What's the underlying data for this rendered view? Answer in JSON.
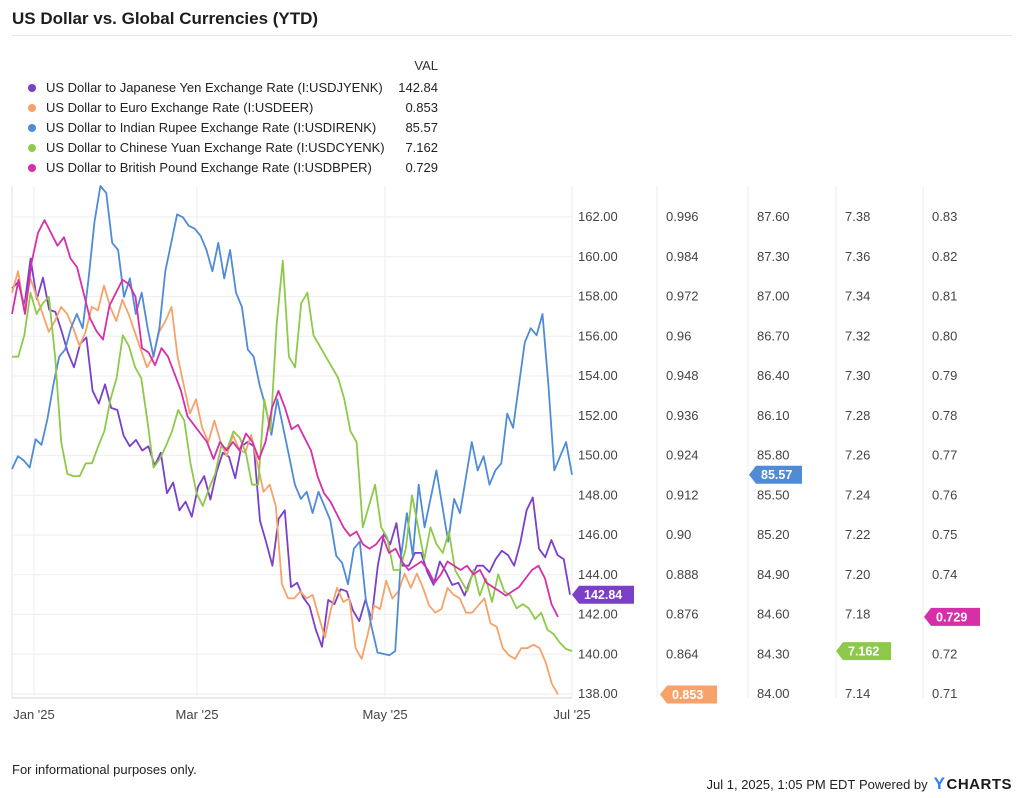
{
  "title": "US Dollar vs. Global Currencies (YTD)",
  "legend_header": "VAL",
  "legend": [
    {
      "name": "US Dollar to Japanese Yen Exchange Rate (I:USDJYENK)",
      "value": "142.84",
      "color": "#7b3fc9"
    },
    {
      "name": "US Dollar to Euro Exchange Rate (I:USDEER)",
      "value": "0.853",
      "color": "#f6a26a"
    },
    {
      "name": "US Dollar to Indian Rupee Exchange Rate (I:USDIRENK)",
      "value": "85.57",
      "color": "#4f8bd6"
    },
    {
      "name": "US Dollar to Chinese Yuan Exchange Rate (I:USDCYENK)",
      "value": "7.162",
      "color": "#8fc94a"
    },
    {
      "name": "US Dollar to British Pound Exchange Rate (I:USDBPER)",
      "value": "0.729",
      "color": "#d62fa8"
    }
  ],
  "footer": {
    "note": "For informational purposes only.",
    "timestamp": "Jul 1, 2025, 1:05 PM EDT",
    "powered": "Powered by",
    "brand": "CHARTS"
  },
  "chart_data": {
    "type": "line",
    "x_ticks": [
      "Jan '25",
      "Mar '25",
      "May '25",
      "Jul '25"
    ],
    "axes": [
      {
        "id": "jpy",
        "ticks": [
          "138.00",
          "140.00",
          "142.00",
          "144.00",
          "146.00",
          "148.00",
          "150.00",
          "152.00",
          "154.00",
          "156.00",
          "158.00",
          "160.00",
          "162.00"
        ],
        "min": 138,
        "max": 162
      },
      {
        "id": "eur",
        "ticks": [
          "0.864",
          "0.876",
          "0.888",
          "0.90",
          "0.912",
          "0.924",
          "0.936",
          "0.948",
          "0.96",
          "0.972",
          "0.984",
          "0.996"
        ],
        "min": 0.852,
        "max": 0.996
      },
      {
        "id": "inr",
        "ticks": [
          "84.00",
          "84.30",
          "84.60",
          "84.90",
          "85.20",
          "85.50",
          "85.80",
          "86.10",
          "86.40",
          "86.70",
          "87.00",
          "87.30",
          "87.60"
        ],
        "min": 84.0,
        "max": 87.6
      },
      {
        "id": "cny",
        "ticks": [
          "7.14",
          "7.16",
          "7.18",
          "7.20",
          "7.22",
          "7.24",
          "7.26",
          "7.28",
          "7.30",
          "7.32",
          "7.34",
          "7.36",
          "7.38"
        ],
        "min": 7.14,
        "max": 7.38
      },
      {
        "id": "gbp",
        "ticks": [
          "0.71",
          "0.72",
          "0.73",
          "0.74",
          "0.75",
          "0.76",
          "0.77",
          "0.78",
          "0.79",
          "0.80",
          "0.81",
          "0.82",
          "0.83"
        ],
        "min": 0.71,
        "max": 0.83
      }
    ],
    "series": [
      {
        "name": "US Dollar to Japanese Yen Exchange Rate (I:USDJYENK)",
        "axis": "jpy",
        "color": "#7b3fc9",
        "last_label": "142.84",
        "values": [
          157.2,
          157.5,
          156.4,
          158.6,
          156.7,
          157.7,
          156.2,
          156.1,
          155.2,
          154.2,
          153.5,
          154.6,
          154.9,
          152.4,
          151.8,
          152.7,
          151.6,
          151.5,
          150.3,
          149.8,
          150.1,
          149.6,
          149.8,
          148.9,
          149.5,
          147.6,
          148.1,
          146.8,
          147.2,
          146.5,
          147.9,
          148.4,
          147.3,
          148.6,
          149.5,
          149.3,
          148.3,
          149.8,
          150.0,
          149.8,
          146.3,
          145.3,
          144.2,
          146.4,
          146.8,
          143.2,
          143.4,
          142.7,
          142.3,
          141.2,
          140.4,
          142.6,
          142.4,
          143.1,
          143.0,
          142.1,
          141.6,
          142.6,
          141.7,
          144.2,
          145.7,
          145.2,
          146.2,
          144.2,
          144.2,
          144.8,
          144.8,
          143.9,
          143.3,
          144.4,
          143.9,
          143.3,
          143.4,
          142.8,
          143.6,
          144.2,
          144.2,
          143.9,
          144.5,
          144.9,
          144.7,
          144.2,
          145.3,
          146.8,
          147.4,
          145.0,
          144.6,
          145.4,
          144.7,
          144.5,
          142.84
        ]
      },
      {
        "name": "US Dollar to Euro Exchange Rate (I:USDEER)",
        "axis": "eur",
        "color": "#f6a26a",
        "last_label": "0.853",
        "values": [
          0.966,
          0.972,
          0.961,
          0.97,
          0.965,
          0.96,
          0.955,
          0.958,
          0.962,
          0.96,
          0.956,
          0.951,
          0.955,
          0.962,
          0.961,
          0.968,
          0.962,
          0.958,
          0.964,
          0.96,
          0.955,
          0.95,
          0.945,
          0.948,
          0.955,
          0.958,
          0.962,
          0.948,
          0.94,
          0.932,
          0.936,
          0.928,
          0.924,
          0.93,
          0.924,
          0.92,
          0.926,
          0.922,
          0.921,
          0.926,
          0.918,
          0.91,
          0.912,
          0.906,
          0.884,
          0.88,
          0.88,
          0.882,
          0.88,
          0.881,
          0.875,
          0.869,
          0.877,
          0.883,
          0.879,
          0.88,
          0.866,
          0.863,
          0.87,
          0.878,
          0.877,
          0.885,
          0.88,
          0.882,
          0.887,
          0.883,
          0.887,
          0.883,
          0.878,
          0.876,
          0.877,
          0.883,
          0.881,
          0.88,
          0.876,
          0.876,
          0.878,
          0.88,
          0.873,
          0.872,
          0.866,
          0.864,
          0.863,
          0.866,
          0.866,
          0.867,
          0.866,
          0.862,
          0.856,
          0.853
        ]
      },
      {
        "name": "US Dollar to Indian Rupee Exchange Rate (I:USDIRENK)",
        "axis": "inr",
        "color": "#4f8bd6",
        "last_label": "85.57",
        "values": [
          85.61,
          85.7,
          85.67,
          85.62,
          85.82,
          85.78,
          85.96,
          86.2,
          86.4,
          86.45,
          86.6,
          86.7,
          86.6,
          86.95,
          87.35,
          87.6,
          87.55,
          87.2,
          87.15,
          86.82,
          86.95,
          86.7,
          86.85,
          86.6,
          86.4,
          86.6,
          87.0,
          87.2,
          87.4,
          87.38,
          87.32,
          87.3,
          87.25,
          87.15,
          87.0,
          87.2,
          86.95,
          87.15,
          86.85,
          86.75,
          86.45,
          86.4,
          86.2,
          86.05,
          85.85,
          86.1,
          85.9,
          85.7,
          85.5,
          85.4,
          85.45,
          85.3,
          85.45,
          85.35,
          85.25,
          85.0,
          84.95,
          84.8,
          85.05,
          85.1,
          84.7,
          84.5,
          84.32,
          84.31,
          84.3,
          84.33,
          85.0,
          85.3,
          85.0,
          85.5,
          85.2,
          85.4,
          85.6,
          85.35,
          85.1,
          85.4,
          85.3,
          85.55,
          85.8,
          85.6,
          85.7,
          85.5,
          85.6,
          85.65,
          86.0,
          85.9,
          86.2,
          86.5,
          86.6,
          86.55,
          86.7,
          86.2,
          85.6,
          85.7,
          85.8,
          85.57
        ]
      },
      {
        "name": "US Dollar to Chinese Yuan Exchange Rate (I:USDCYENK)",
        "axis": "cny",
        "color": "#8fc94a",
        "last_label": "7.162",
        "values": [
          7.3,
          7.3,
          7.31,
          7.33,
          7.32,
          7.325,
          7.328,
          7.3,
          7.26,
          7.245,
          7.244,
          7.244,
          7.25,
          7.25,
          7.258,
          7.265,
          7.28,
          7.29,
          7.31,
          7.305,
          7.295,
          7.29,
          7.27,
          7.248,
          7.252,
          7.258,
          7.265,
          7.275,
          7.27,
          7.25,
          7.236,
          7.23,
          7.238,
          7.245,
          7.258,
          7.257,
          7.265,
          7.262,
          7.255,
          7.24,
          7.24,
          7.28,
          7.265,
          7.315,
          7.345,
          7.3,
          7.295,
          7.325,
          7.33,
          7.31,
          7.305,
          7.3,
          7.295,
          7.29,
          7.28,
          7.265,
          7.26,
          7.22,
          7.23,
          7.24,
          7.22,
          7.215,
          7.2,
          7.2,
          7.21,
          7.235,
          7.22,
          7.205,
          7.22,
          7.212,
          7.208,
          7.218,
          7.2,
          7.195,
          7.19,
          7.2,
          7.188,
          7.196,
          7.185,
          7.198,
          7.19,
          7.188,
          7.182,
          7.184,
          7.182,
          7.177,
          7.18,
          7.172,
          7.17,
          7.166,
          7.163,
          7.162
        ]
      },
      {
        "name": "US Dollar to British Pound Exchange Rate (I:USDBPER)",
        "axis": "gbp",
        "color": "#d62fa8",
        "last_label": "0.729",
        "values": [
          0.8,
          0.808,
          0.8,
          0.812,
          0.819,
          0.822,
          0.819,
          0.816,
          0.818,
          0.813,
          0.811,
          0.805,
          0.799,
          0.796,
          0.794,
          0.802,
          0.805,
          0.808,
          0.807,
          0.804,
          0.792,
          0.791,
          0.788,
          0.792,
          0.79,
          0.786,
          0.782,
          0.776,
          0.774,
          0.772,
          0.77,
          0.766,
          0.77,
          0.768,
          0.77,
          0.768,
          0.772,
          0.77,
          0.766,
          0.77,
          0.778,
          0.782,
          0.778,
          0.773,
          0.774,
          0.771,
          0.768,
          0.762,
          0.758,
          0.756,
          0.753,
          0.75,
          0.748,
          0.749,
          0.746,
          0.745,
          0.746,
          0.748,
          0.744,
          0.745,
          0.742,
          0.74,
          0.741,
          0.742,
          0.74,
          0.737,
          0.739,
          0.742,
          0.741,
          0.74,
          0.741,
          0.739,
          0.74,
          0.737,
          0.736,
          0.735,
          0.734,
          0.735,
          0.736,
          0.738,
          0.74,
          0.741,
          0.738,
          0.732,
          0.729
        ]
      }
    ],
    "grid": true,
    "legend_position": "top-left"
  }
}
